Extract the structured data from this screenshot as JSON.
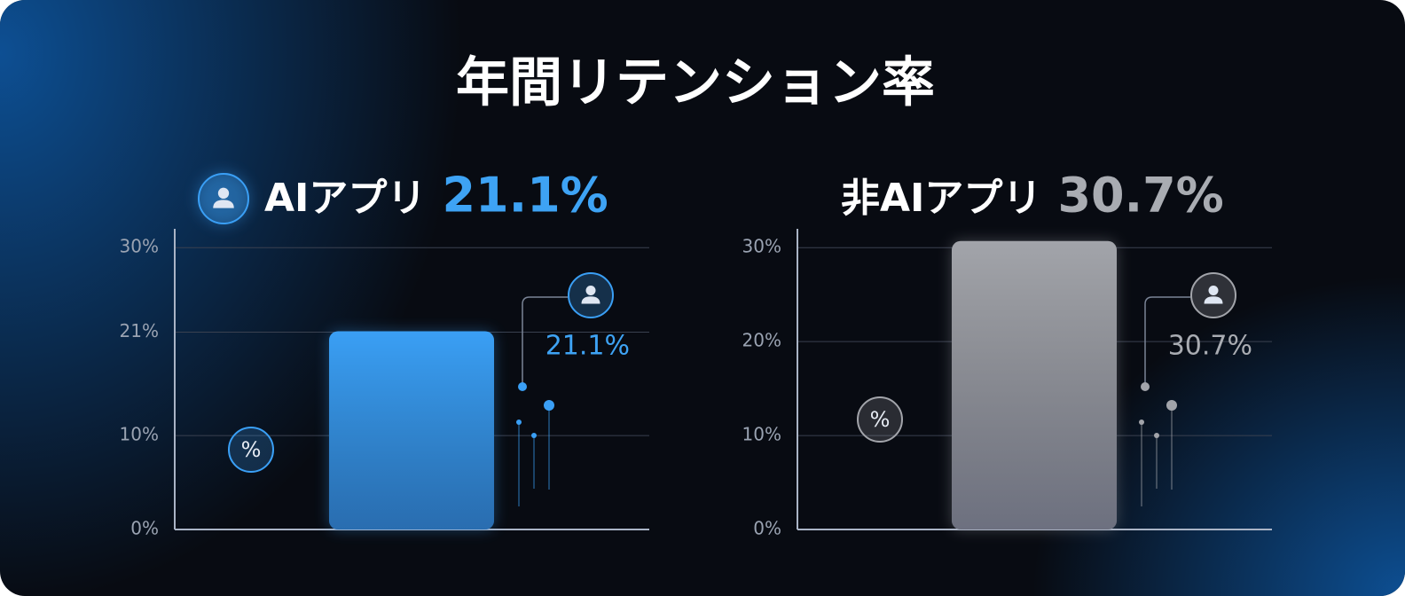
{
  "title": "年間リテンション率",
  "chart_data": [
    {
      "type": "bar",
      "label": "AIアプリ",
      "categories": [
        null
      ],
      "values": [
        21.1
      ],
      "value_labels": [
        "21.1%"
      ],
      "color": "#3a9ff5",
      "badge": "%",
      "ylim": [
        0,
        32
      ],
      "yticks": [
        {
          "value": 0,
          "label": "0%"
        },
        {
          "value": 10,
          "label": "10%"
        },
        {
          "value": 21,
          "label": "21%"
        },
        {
          "value": 30,
          "label": "30%"
        }
      ],
      "grid": true
    },
    {
      "type": "bar",
      "label": "非AIアプリ",
      "categories": [
        null
      ],
      "values": [
        30.7
      ],
      "value_labels": [
        "30.7%"
      ],
      "color": "#a2a4aa",
      "badge": "%",
      "ylim": [
        0,
        32
      ],
      "yticks": [
        {
          "value": 0,
          "label": "0%"
        },
        {
          "value": 10,
          "label": "10%"
        },
        {
          "value": 20,
          "label": "20%"
        },
        {
          "value": 30,
          "label": "30%"
        }
      ],
      "grid": true
    }
  ]
}
